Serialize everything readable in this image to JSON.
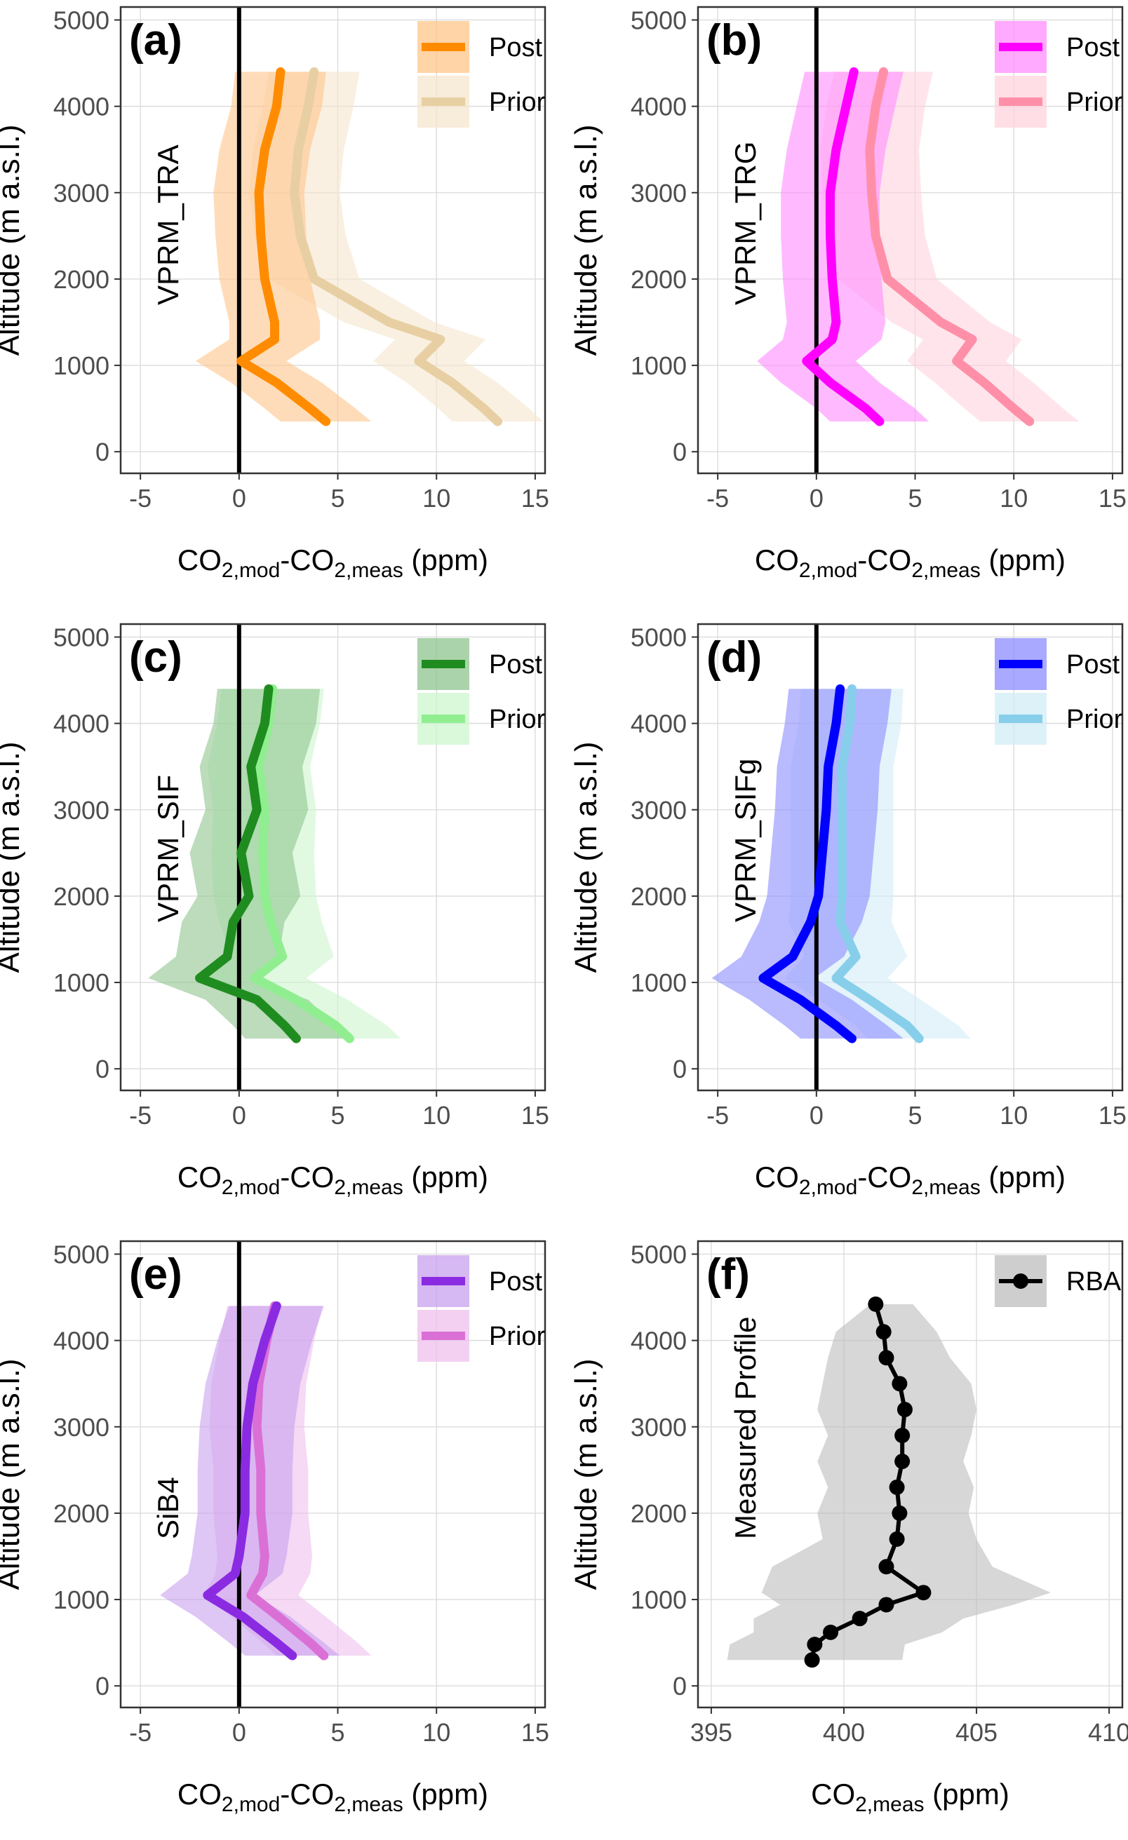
{
  "chart_data": [
    {
      "type": "line",
      "panel_letter": "(a)",
      "model_label": "VPRM_TRA",
      "xlabel": {
        "base": "CO",
        "sub1": "2,mod",
        "mid": "-CO",
        "sub2": "2,meas",
        "unit": " (ppm)"
      },
      "ylabel": "Altitude (m a.s.l.)",
      "xlim": [
        -6,
        15.5
      ],
      "ylim": [
        -250,
        5150
      ],
      "xticks": [
        -5,
        0,
        5,
        10,
        15
      ],
      "yticks": [
        0,
        1000,
        2000,
        3000,
        4000,
        5000
      ],
      "grid": true,
      "zero_line": true,
      "legend_position": "top-right",
      "series": [
        {
          "name": "Post",
          "color": "#ff8c00",
          "band_color": "#ffc58a",
          "y": [
            4400,
            4000,
            3500,
            3000,
            2500,
            2000,
            1500,
            1300,
            1050,
            800,
            500,
            350
          ],
          "x": [
            2.1,
            1.9,
            1.3,
            1.0,
            1.1,
            1.3,
            1.8,
            1.8,
            0.1,
            1.9,
            3.6,
            4.4
          ],
          "band_half_width": 2.3
        },
        {
          "name": "Prior",
          "color": "#e8cfa3",
          "band_color": "#f5e6cd",
          "y": [
            4400,
            4000,
            3500,
            3000,
            2500,
            2000,
            1500,
            1300,
            1050,
            800,
            500,
            350
          ],
          "x": [
            3.8,
            3.5,
            3.0,
            2.8,
            3.1,
            3.8,
            7.6,
            10.2,
            9.1,
            10.8,
            12.4,
            13.1
          ],
          "band_half_width": 2.3
        }
      ]
    },
    {
      "type": "line",
      "panel_letter": "(b)",
      "model_label": "VPRM_TRG",
      "xlabel": {
        "base": "CO",
        "sub1": "2,mod",
        "mid": "-CO",
        "sub2": "2,meas",
        "unit": " (ppm)"
      },
      "ylabel": "Altitude (m a.s.l.)",
      "xlim": [
        -6,
        15.5
      ],
      "ylim": [
        -250,
        5150
      ],
      "xticks": [
        -5,
        0,
        5,
        10,
        15
      ],
      "yticks": [
        0,
        1000,
        2000,
        3000,
        4000,
        5000
      ],
      "grid": true,
      "zero_line": true,
      "legend_position": "top-right",
      "series": [
        {
          "name": "Post",
          "color": "#ff00ff",
          "band_color": "#ff8cff",
          "y": [
            4400,
            4000,
            3500,
            3000,
            2500,
            2000,
            1500,
            1300,
            1050,
            800,
            500,
            350
          ],
          "x": [
            1.9,
            1.5,
            1.0,
            0.7,
            0.7,
            0.8,
            1.0,
            0.8,
            -0.5,
            0.7,
            2.5,
            3.2
          ],
          "band_half_width": 2.5
        },
        {
          "name": "Prior",
          "color": "#ff8fa8",
          "band_color": "#ffd3dd",
          "y": [
            4400,
            4000,
            3500,
            3000,
            2500,
            2000,
            1500,
            1300,
            1050,
            800,
            500,
            350
          ],
          "x": [
            3.4,
            3.0,
            2.7,
            2.8,
            3.0,
            3.6,
            6.3,
            7.9,
            7.1,
            8.5,
            10.0,
            10.8
          ],
          "band_half_width": 2.5
        }
      ]
    },
    {
      "type": "line",
      "panel_letter": "(c)",
      "model_label": "VPRM_SIF",
      "xlabel": {
        "base": "CO",
        "sub1": "2,mod",
        "mid": "-CO",
        "sub2": "2,meas",
        "unit": " (ppm)"
      },
      "ylabel": "Altitude (m a.s.l.)",
      "xlim": [
        -6,
        15.5
      ],
      "ylim": [
        -250,
        5150
      ],
      "xticks": [
        -5,
        0,
        5,
        10,
        15
      ],
      "yticks": [
        0,
        1000,
        2000,
        3000,
        4000,
        5000
      ],
      "grid": true,
      "zero_line": true,
      "legend_position": "top-right",
      "series": [
        {
          "name": "Post",
          "color": "#1f8c1f",
          "band_color": "#8fc48f",
          "y": [
            4400,
            4000,
            3500,
            3000,
            2500,
            2000,
            1700,
            1300,
            1050,
            800,
            500,
            350
          ],
          "x": [
            1.5,
            1.3,
            0.6,
            0.9,
            0.1,
            0.5,
            -0.3,
            -0.6,
            -2.0,
            0.9,
            2.3,
            2.9
          ],
          "band_half_width": 2.6
        },
        {
          "name": "Prior",
          "color": "#90ee90",
          "band_color": "#cdf5cd",
          "y": [
            4400,
            4000,
            3500,
            3000,
            2500,
            2000,
            1700,
            1300,
            1050,
            800,
            500,
            350
          ],
          "x": [
            1.7,
            1.5,
            1.0,
            1.3,
            1.2,
            1.3,
            1.6,
            2.2,
            0.8,
            2.9,
            4.9,
            5.6
          ],
          "band_half_width": 2.6
        }
      ]
    },
    {
      "type": "line",
      "panel_letter": "(d)",
      "model_label": "VPRM_SIFg",
      "xlabel": {
        "base": "CO",
        "sub1": "2,mod",
        "mid": "-CO",
        "sub2": "2,meas",
        "unit": " (ppm)"
      },
      "ylabel": "Altitude (m a.s.l.)",
      "xlim": [
        -6,
        15.5
      ],
      "ylim": [
        -250,
        5150
      ],
      "xticks": [
        -5,
        0,
        5,
        10,
        15
      ],
      "yticks": [
        0,
        1000,
        2000,
        3000,
        4000,
        5000
      ],
      "grid": true,
      "zero_line": true,
      "legend_position": "top-right",
      "series": [
        {
          "name": "Post",
          "color": "#0000ff",
          "band_color": "#8c8cff",
          "y": [
            4400,
            4000,
            3500,
            3000,
            2500,
            2000,
            1700,
            1300,
            1050,
            800,
            500,
            350
          ],
          "x": [
            1.2,
            1.0,
            0.6,
            0.5,
            0.3,
            0.1,
            -0.3,
            -1.2,
            -2.7,
            -0.8,
            1.0,
            1.8
          ],
          "band_half_width": 2.6
        },
        {
          "name": "Prior",
          "color": "#87ceeb",
          "band_color": "#d2ecf7",
          "y": [
            4400,
            4000,
            3500,
            3000,
            2500,
            2000,
            1700,
            1300,
            1050,
            800,
            500,
            350
          ],
          "x": [
            1.8,
            1.7,
            1.3,
            1.3,
            1.3,
            1.3,
            1.2,
            2.0,
            1.0,
            2.7,
            4.6,
            5.2
          ],
          "band_half_width": 2.6
        }
      ]
    },
    {
      "type": "line",
      "panel_letter": "(e)",
      "model_label": "SiB4",
      "xlabel": {
        "base": "CO",
        "sub1": "2,mod",
        "mid": "-CO",
        "sub2": "2,meas",
        "unit": " (ppm)"
      },
      "ylabel": "Altitude (m a.s.l.)",
      "xlim": [
        -6,
        15.5
      ],
      "ylim": [
        -250,
        5150
      ],
      "xticks": [
        -5,
        0,
        5,
        10,
        15
      ],
      "yticks": [
        0,
        1000,
        2000,
        3000,
        4000,
        5000
      ],
      "grid": true,
      "zero_line": true,
      "legend_position": "top-right",
      "series": [
        {
          "name": "Post",
          "color": "#8a2be2",
          "band_color": "#c8a0ee",
          "y": [
            4400,
            4000,
            3500,
            3000,
            2500,
            2000,
            1500,
            1300,
            1050,
            800,
            500,
            350
          ],
          "x": [
            1.9,
            1.3,
            0.7,
            0.4,
            0.3,
            0.3,
            0.0,
            -0.2,
            -1.6,
            0.2,
            1.9,
            2.7
          ],
          "band_half_width": 2.4
        },
        {
          "name": "Prior",
          "color": "#da70d6",
          "band_color": "#efc0ee",
          "y": [
            4400,
            4000,
            3500,
            3000,
            2500,
            2000,
            1500,
            1300,
            1050,
            800,
            500,
            350
          ],
          "x": [
            1.8,
            1.4,
            1.0,
            0.9,
            1.1,
            1.1,
            1.3,
            1.2,
            0.6,
            2.0,
            3.6,
            4.3
          ],
          "band_half_width": 2.4
        }
      ]
    },
    {
      "type": "line",
      "panel_letter": "(f)",
      "model_label": "Measured Profile",
      "xlabel": {
        "base": "CO",
        "sub1": "",
        "mid": "",
        "sub2": "2,meas",
        "unit": " (ppm)"
      },
      "ylabel": "Altitude (m a.s.l.)",
      "xlim": [
        394.5,
        410.5
      ],
      "ylim": [
        -250,
        5150
      ],
      "xticks": [
        395,
        400,
        405,
        410
      ],
      "yticks": [
        0,
        1000,
        2000,
        3000,
        4000,
        5000
      ],
      "grid": true,
      "zero_line": false,
      "legend_position": "top-right",
      "series": [
        {
          "name": "RBA",
          "color": "#000000",
          "band_color": "#bdbdbd",
          "markers": true,
          "y": [
            4420,
            4100,
            3800,
            3500,
            3200,
            2900,
            2600,
            2300,
            2000,
            1700,
            1380,
            1080,
            940,
            780,
            620,
            480,
            300
          ],
          "x": [
            401.2,
            401.5,
            401.6,
            402.1,
            402.3,
            402.2,
            402.2,
            402.0,
            402.1,
            402.0,
            401.6,
            403.0,
            401.6,
            400.6,
            399.5,
            398.9,
            398.8
          ],
          "band_x_left": [
            401.0,
            399.7,
            399.4,
            399.2,
            399.0,
            399.4,
            399.0,
            399.4,
            399.0,
            399.2,
            397.3,
            396.9,
            397.6,
            396.6,
            396.6,
            395.7,
            395.6
          ],
          "band_x_right": [
            402.6,
            403.5,
            404.0,
            404.8,
            405.0,
            404.8,
            404.5,
            404.9,
            404.7,
            405.0,
            405.6,
            407.8,
            406.4,
            404.5,
            403.7,
            402.3,
            402.2
          ]
        }
      ]
    }
  ]
}
